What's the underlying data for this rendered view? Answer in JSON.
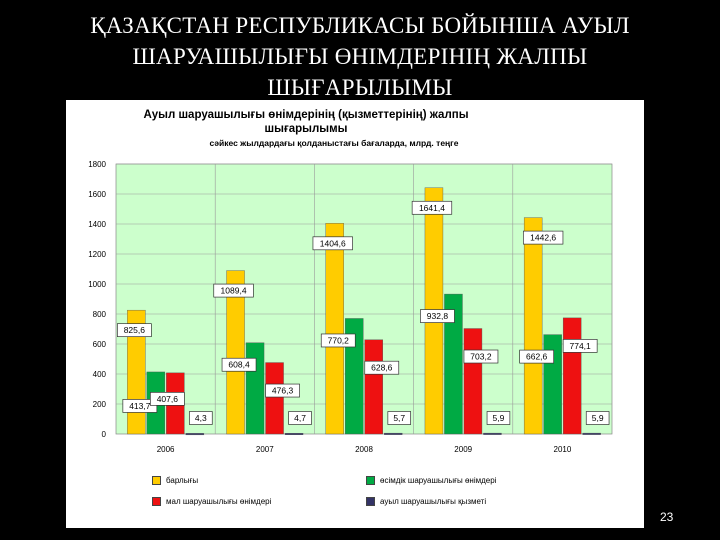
{
  "slide": {
    "title_line1": "ҚАЗАҚСТАН РЕСПУБЛИКАСЫ БОЙЫНША АУЫЛ",
    "title_line2": "ШАРУАШЫЛЫҒЫ ӨНІМДЕРІНІҢ ЖАЛПЫ",
    "title_line3": "ШЫҒАРЫЛЫМЫ",
    "page_number": "23"
  },
  "chart_data": {
    "type": "bar",
    "title_line1": "Ауыл шаруашылығы өнімдерінің (қызметтерінің) жалпы",
    "title_line2": "шығарылымы",
    "subtitle": "сәйкес жылдардағы қолданыстағы бағаларда, млрд. теңге",
    "categories": [
      "2006",
      "2007",
      "2008",
      "2009",
      "2010"
    ],
    "y_ticks": [
      "0",
      "200",
      "400",
      "600",
      "800",
      "1000",
      "1200",
      "1400",
      "1600",
      "1800"
    ],
    "ylim": [
      0,
      1800
    ],
    "grid": true,
    "legend_position": "bottom",
    "plot_background": "#ccffcc",
    "series": [
      {
        "name": "барлығы",
        "color": "#ffcc00",
        "values": [
          825.6,
          1089.4,
          1404.6,
          1641.4,
          1442.6
        ],
        "labels": [
          "825,6",
          "1089,4",
          "1404,6",
          "1641,4",
          "1442,6"
        ]
      },
      {
        "name": "өсімдік шаруашылығы өнімдері",
        "color": "#00aa44",
        "values": [
          413.7,
          608.4,
          770.2,
          932.8,
          662.6
        ],
        "labels": [
          "413,7",
          "608,4",
          "770,2",
          "932,8",
          "662,6"
        ]
      },
      {
        "name": "мал шаруашылығы өнімдері",
        "color": "#ee1111",
        "values": [
          407.6,
          476.3,
          628.6,
          703.2,
          774.1
        ],
        "labels": [
          "407,6",
          "476,3",
          "628,6",
          "703,2",
          "774,1"
        ]
      },
      {
        "name": "ауыл шаруашылығы қызметі",
        "color": "#333366",
        "values": [
          4.3,
          4.7,
          5.7,
          5.9,
          5.9
        ],
        "labels": [
          "4,3",
          "4,7",
          "5,7",
          "5,9",
          "5,9"
        ]
      }
    ]
  }
}
